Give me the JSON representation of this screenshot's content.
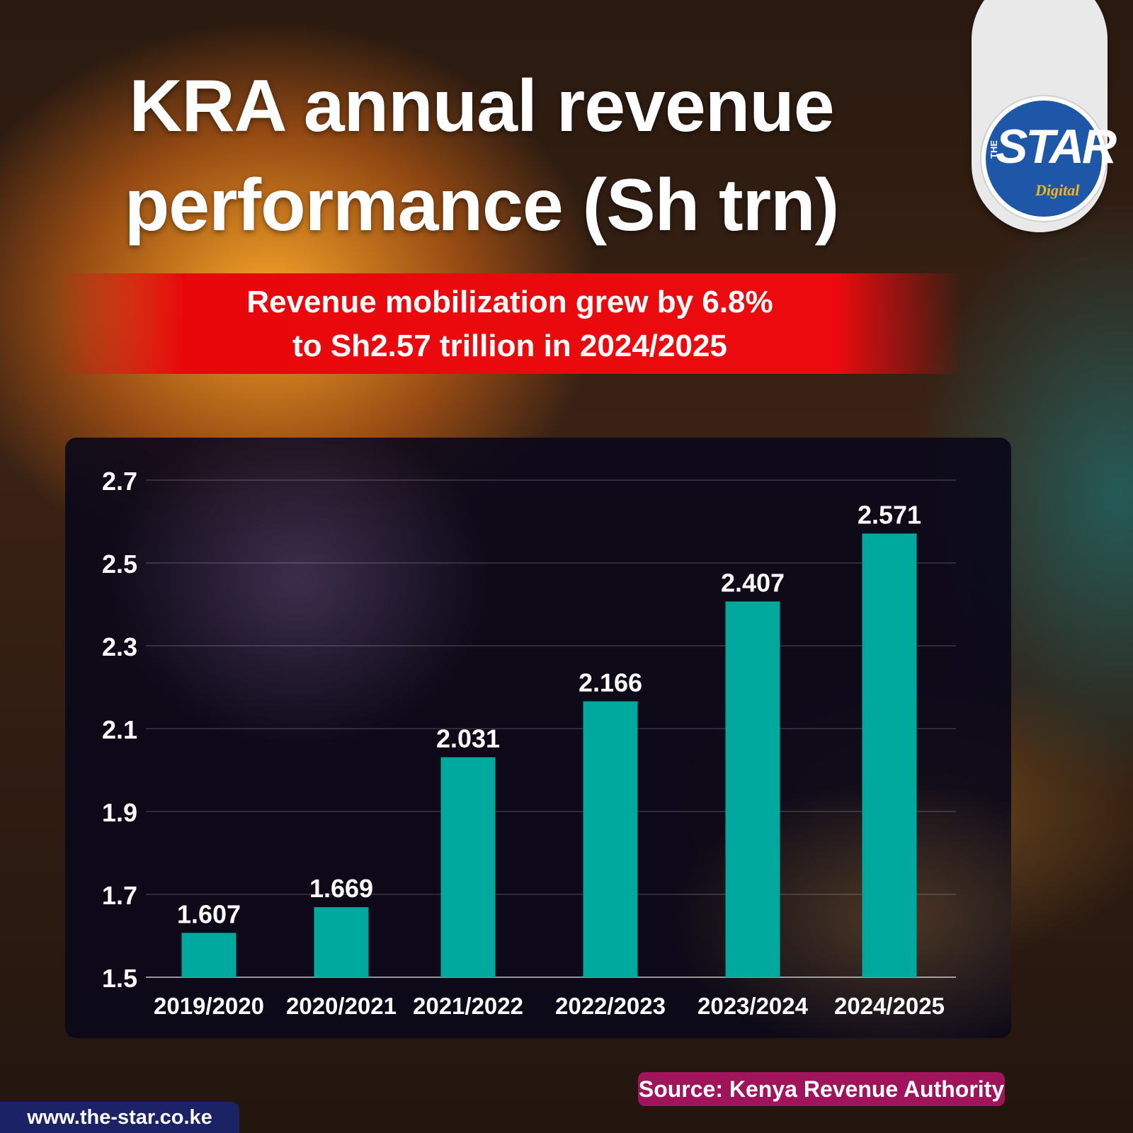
{
  "header": {
    "title_line1": "KRA annual revenue",
    "title_line2": "performance (Sh trn)",
    "subtitle_line1": "Revenue mobilization grew by 6.8%",
    "subtitle_line2": "to Sh2.57 trillion in 2024/2025"
  },
  "logo": {
    "the": "THE",
    "star": "STAR",
    "digital": "Digital"
  },
  "footer": {
    "source": "Source: Kenya Revenue Authority",
    "website": "www.the-star.co.ke"
  },
  "colors": {
    "bar": "#00a99d",
    "subtitle_band": "#e8080c",
    "source_badge": "#a0145c",
    "website_badge": "#1c2266",
    "logo_blue": "#1f57a8",
    "logo_gold": "#f0b42a"
  },
  "chart_data": {
    "type": "bar",
    "categories": [
      "2019/2020",
      "2020/2021",
      "2021/2022",
      "2022/2023",
      "2023/2024",
      "2024/2025"
    ],
    "values": [
      1.607,
      1.669,
      2.031,
      2.166,
      2.407,
      2.571
    ],
    "value_labels": [
      "1.607",
      "1.669",
      "2.031",
      "2.166",
      "2.407",
      "2.571"
    ],
    "yticks": [
      1.5,
      1.7,
      1.9,
      2.1,
      2.3,
      2.5,
      2.7
    ],
    "ytick_labels": [
      "1.5",
      "1.7",
      "1.9",
      "2.1",
      "2.3",
      "2.5",
      "2.7"
    ],
    "ylim": [
      1.5,
      2.7
    ],
    "grid": true,
    "title": "",
    "xlabel": "",
    "ylabel": ""
  }
}
